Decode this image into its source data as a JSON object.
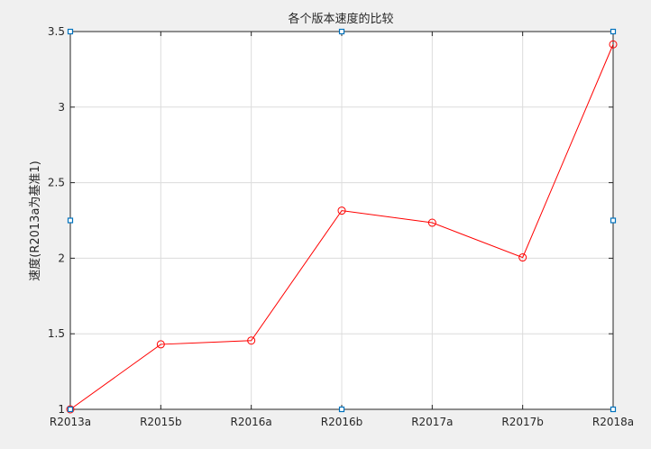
{
  "window": {
    "background": "#f0f0f0"
  },
  "chart_data": {
    "type": "line",
    "title": "各个版本速度的比较",
    "xlabel": "",
    "ylabel": "速度(R2013a为基准1)",
    "categories": [
      "R2013a",
      "R2015b",
      "R2016a",
      "R2016b",
      "R2017a",
      "R2017b",
      "R2018a"
    ],
    "series": [
      {
        "values": [
          1.0,
          1.43,
          1.455,
          2.315,
          2.235,
          2.005,
          3.415
        ],
        "color": "#ff0000",
        "marker": "circle"
      }
    ],
    "ylim": [
      1,
      3.5
    ],
    "yticks": [
      1,
      1.5,
      2,
      2.5,
      3,
      3.5
    ],
    "ytick_labels": [
      "1",
      "1.5",
      "2",
      "2.5",
      "3",
      "3.5"
    ],
    "grid": true,
    "box": true,
    "axes_background": "#ffffff",
    "grid_color": "#dcdcdc",
    "selection_handle_color": "#0072bd"
  }
}
